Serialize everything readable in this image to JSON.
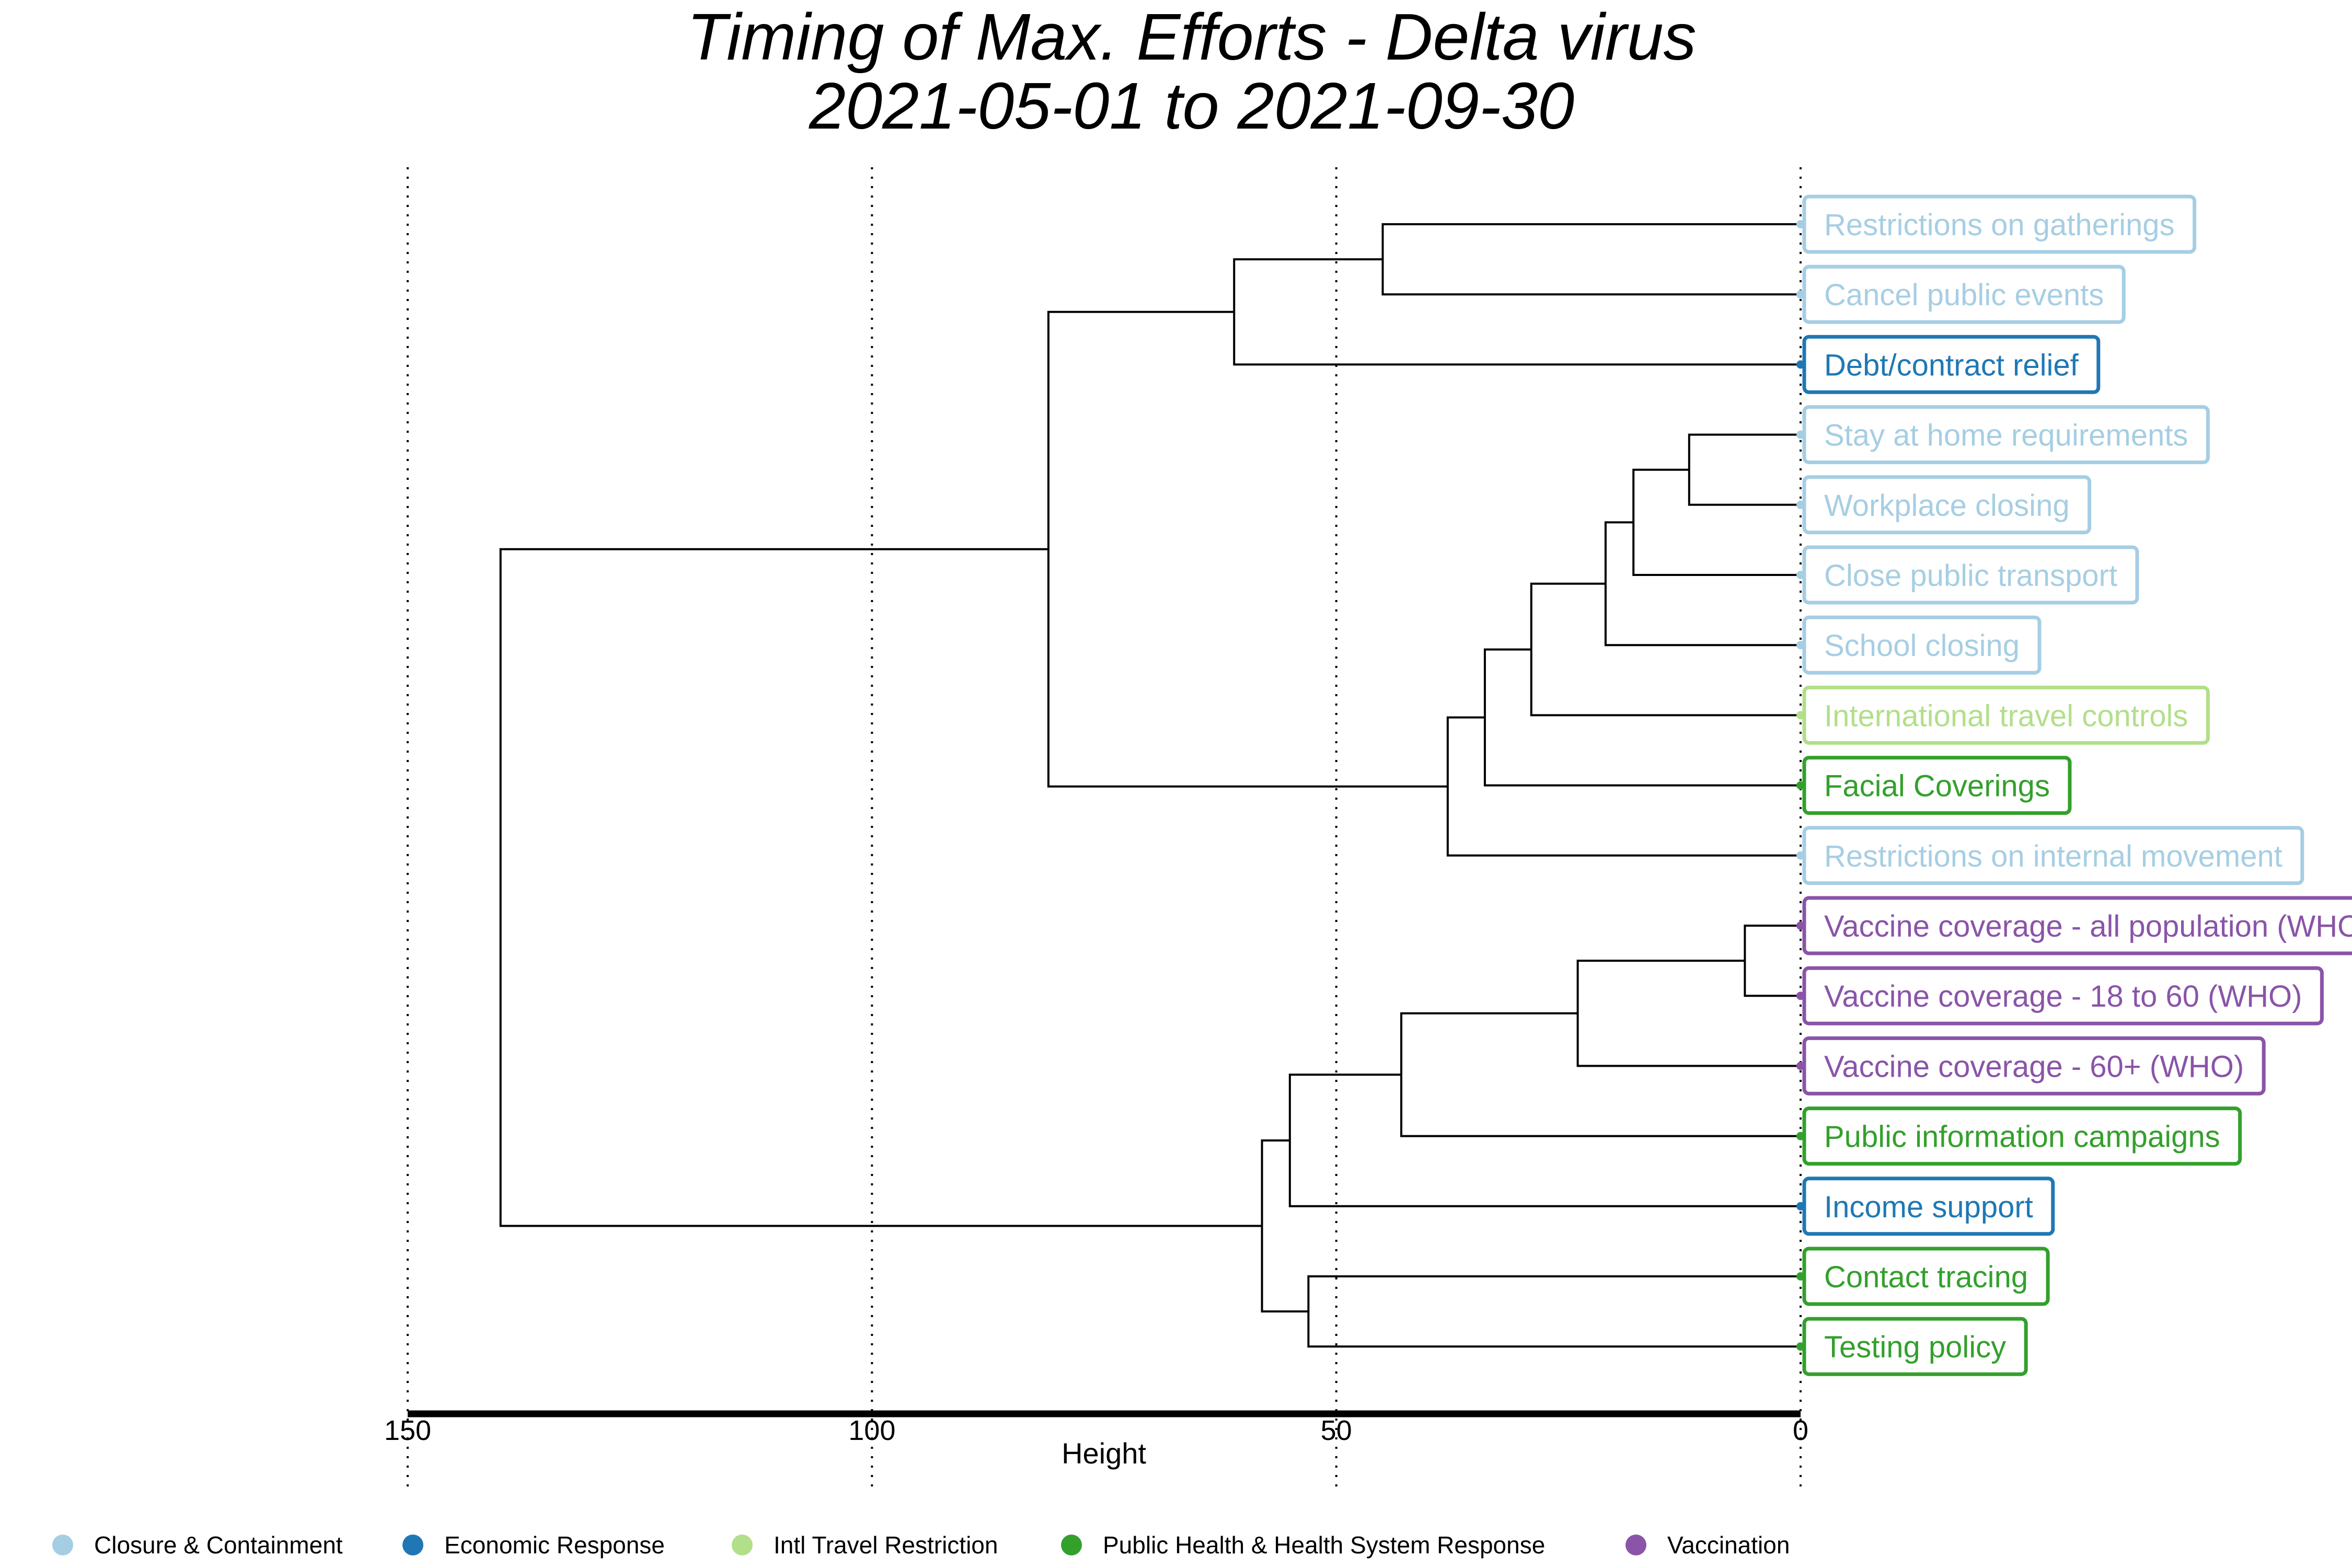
{
  "chart_data": {
    "type": "dendrogram",
    "title": "Timing of Max. Efforts - Delta virus",
    "subtitle": "2021-05-01 to 2021-09-30",
    "xlabel": "Height",
    "xlim": [
      150,
      0
    ],
    "xticks": [
      150,
      100,
      50,
      0
    ],
    "grid": "vertical dotted lines at ticks",
    "legend_position": "bottom",
    "categories": [
      {
        "name": "Closure & Containment",
        "color": "#a6cee3"
      },
      {
        "name": "Economic Response",
        "color": "#1f78b4"
      },
      {
        "name": "Intl Travel Restriction",
        "color": "#b2df8a"
      },
      {
        "name": "Public Health & Health System Response",
        "color": "#33a02c"
      },
      {
        "name": "Vaccination",
        "color": "#8a54a8"
      }
    ],
    "leaves": [
      {
        "label": "Restrictions on gatherings",
        "category": 0
      },
      {
        "label": "Cancel public events",
        "category": 0
      },
      {
        "label": "Debt/contract relief",
        "category": 1
      },
      {
        "label": "Stay at home requirements",
        "category": 0
      },
      {
        "label": "Workplace closing",
        "category": 0
      },
      {
        "label": "Close public transport",
        "category": 0
      },
      {
        "label": "School closing",
        "category": 0
      },
      {
        "label": "International travel controls",
        "category": 2
      },
      {
        "label": "Facial Coverings",
        "category": 3
      },
      {
        "label": "Restrictions on internal movement",
        "category": 0
      },
      {
        "label": "Vaccine coverage - all population (WHO)",
        "category": 4
      },
      {
        "label": "Vaccine coverage - 18 to 60 (WHO)",
        "category": 4
      },
      {
        "label": "Vaccine coverage - 60+ (WHO)",
        "category": 4
      },
      {
        "label": "Public information campaigns",
        "category": 3
      },
      {
        "label": "Income support",
        "category": 1
      },
      {
        "label": "Contact tracing",
        "category": 3
      },
      {
        "label": "Testing policy",
        "category": 3
      }
    ],
    "merges": [
      {
        "a": "L0",
        "b": "L1",
        "height": 45
      },
      {
        "a": "M0",
        "b": "L2",
        "height": 61
      },
      {
        "a": "L3",
        "b": "L4",
        "height": 12
      },
      {
        "a": "M2",
        "b": "L5",
        "height": 18
      },
      {
        "a": "M3",
        "b": "L6",
        "height": 21
      },
      {
        "a": "M4",
        "b": "L7",
        "height": 29
      },
      {
        "a": "M5",
        "b": "L8",
        "height": 34
      },
      {
        "a": "M6",
        "b": "L9",
        "height": 38
      },
      {
        "a": "M1",
        "b": "M7",
        "height": 81
      },
      {
        "a": "L10",
        "b": "L11",
        "height": 6
      },
      {
        "a": "M9",
        "b": "L12",
        "height": 24
      },
      {
        "a": "M10",
        "b": "L13",
        "height": 43
      },
      {
        "a": "M11",
        "b": "L14",
        "height": 55
      },
      {
        "a": "L15",
        "b": "L16",
        "height": 53
      },
      {
        "a": "M12",
        "b": "M13",
        "height": 58
      },
      {
        "a": "M8",
        "b": "M14",
        "height": 140
      }
    ]
  }
}
